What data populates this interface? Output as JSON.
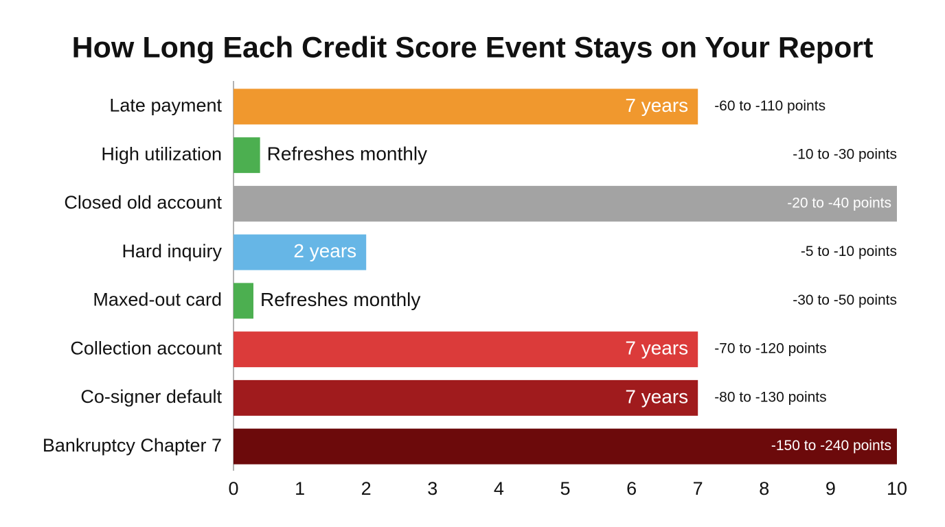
{
  "chart_data": {
    "type": "hbar",
    "title": "How Long Each Credit Score Event Stays on Your Report",
    "categories": [
      "Late payment",
      "High utilization",
      "Closed old account",
      "Hard inquiry",
      "Maxed-out card",
      "Collection account",
      "Co-signer default",
      "Bankruptcy Chapter 7"
    ],
    "values": [
      7,
      0.4,
      10,
      2,
      0.3,
      7,
      7,
      10
    ],
    "value_labels": [
      "7 years",
      "Refreshes monthly",
      null,
      "2 years",
      "Refreshes monthly",
      "7 years",
      "7 years",
      null
    ],
    "annotations": [
      "-60 to -110 points",
      "-10 to -30 points",
      "-20 to -40 points",
      "-5 to -10 points",
      "-30 to -50 points",
      "-70 to -120 points",
      "-80 to -130 points",
      "-150 to -240 points"
    ],
    "colors": [
      "#f0982e",
      "#4caf50",
      "#a3a3a3",
      "#66b6e6",
      "#4caf50",
      "#db3b3a",
      "#a01b1d",
      "#6c0a0b"
    ],
    "xlim": [
      0,
      10
    ],
    "xticks": [
      0,
      1,
      2,
      3,
      4,
      5,
      6,
      7,
      8,
      9,
      10
    ],
    "grid": false
  }
}
